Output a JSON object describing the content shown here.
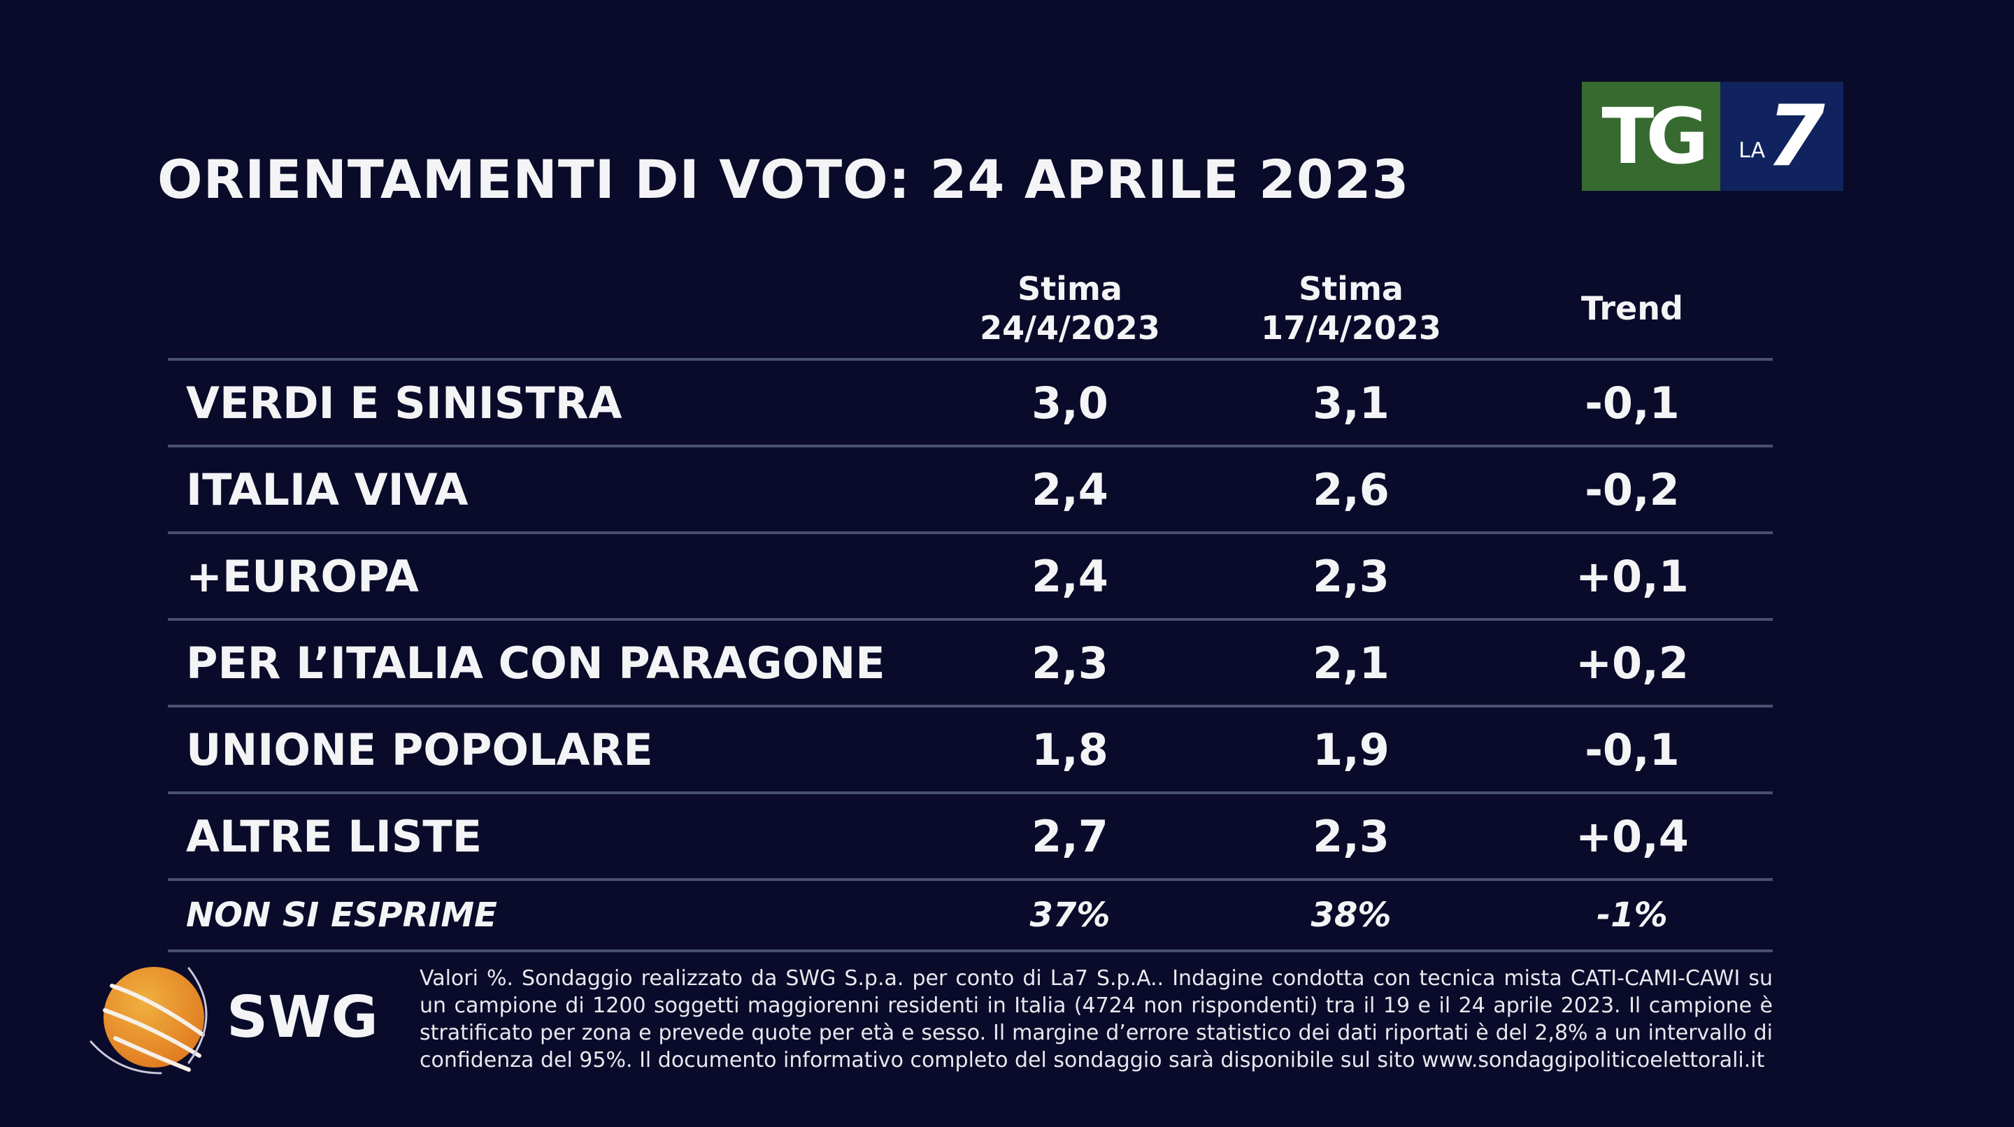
{
  "header": {
    "title": "ORIENTAMENTI DI VOTO: 24 APRILE 2023",
    "logo": "TG LA7"
  },
  "chart_data": {
    "type": "table",
    "title": "ORIENTAMENTI DI VOTO: 24 APRILE 2023",
    "columns": [
      {
        "line1": "Stima",
        "line2": "24/4/2023"
      },
      {
        "line1": "Stima",
        "line2": "17/4/2023"
      },
      {
        "line1": "Trend",
        "line2": ""
      }
    ],
    "rows": [
      {
        "party": "VERDI E SINISTRA",
        "v1": "3,0",
        "v2": "3,1",
        "trend": "-0,1"
      },
      {
        "party": "ITALIA VIVA",
        "v1": "2,4",
        "v2": "2,6",
        "trend": "-0,2"
      },
      {
        "party": "+EUROPA",
        "v1": "2,4",
        "v2": "2,3",
        "trend": "+0,1"
      },
      {
        "party": "PER L’ITALIA CON PARAGONE",
        "v1": "2,3",
        "v2": "2,1",
        "trend": "+0,2"
      },
      {
        "party": "UNIONE POPOLARE",
        "v1": "1,8",
        "v2": "1,9",
        "trend": "-0,1"
      },
      {
        "party": "ALTRE LISTE",
        "v1": "2,7",
        "v2": "2,3",
        "trend": "+0,4"
      }
    ],
    "abstain": {
      "party": "NON SI ESPRIME",
      "v1": "37%",
      "v2": "38%",
      "trend": "-1%"
    }
  },
  "footer": {
    "brand": "SWG",
    "note": "Valori %. Sondaggio realizzato da SWG S.p.a. per conto di La7 S.p.A.. Indagine condotta con tecnica mista CATI-CAMI-CAWI su un campione di 1200 soggetti maggiorenni residenti in Italia (4724 non rispondenti) tra il 19 e il 24 aprile 2023. Il campione è stratificato per zona e prevede quote per età e sesso. Il margine d’errore statistico dei dati riportati è del 2,8% a un intervallo di confidenza del 95%. Il documento informativo completo del sondaggio sarà disponibile sul sito www.sondaggipoliticoelettorali.it"
  },
  "colors": {
    "background": "#0a0b2a",
    "tg_green": "#366a2f",
    "la7_blue": "#10235e",
    "swg_orange": "#e8a030"
  }
}
